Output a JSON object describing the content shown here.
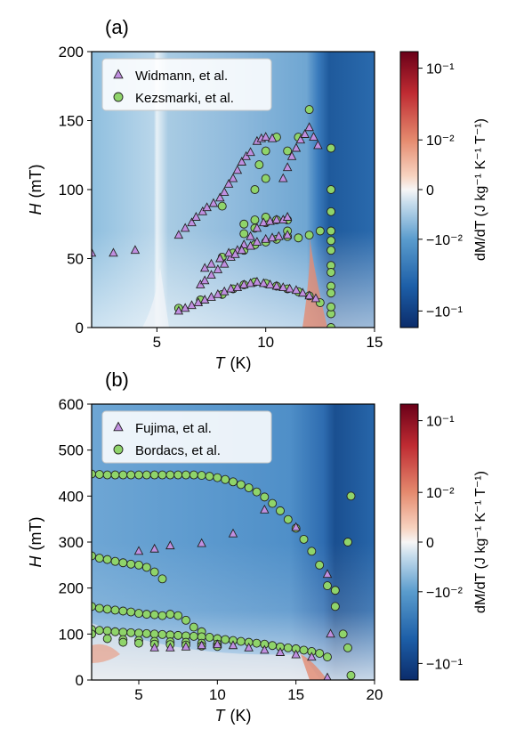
{
  "chart_data": [
    {
      "type": "heatmap",
      "panel_label": "(a)",
      "xlabel_var": "T",
      "xlabel_unit": "(K)",
      "ylabel_var": "H",
      "ylabel_unit": "(mT)",
      "xlim": [
        2,
        15
      ],
      "ylim": [
        0,
        200
      ],
      "xticks": [
        5,
        10,
        15
      ],
      "yticks": [
        0,
        50,
        100,
        150,
        200
      ],
      "colorbar": {
        "label": "dM/dT (J kg⁻¹ K⁻¹ T⁻¹)",
        "scale": "symlog",
        "ticks": [
          "10⁻¹",
          "10⁻²",
          "0",
          "−10⁻²",
          "−10⁻¹"
        ]
      },
      "legend_position": "top-left",
      "series": [
        {
          "name": "Widmann, et al.",
          "marker": "triangle",
          "color": "#c08fe0",
          "points": [
            [
              2,
              54
            ],
            [
              3,
              54
            ],
            [
              4,
              56
            ],
            [
              6,
              67
            ],
            [
              6.3,
              72
            ],
            [
              6.6,
              76
            ],
            [
              6.8,
              80
            ],
            [
              7.1,
              84
            ],
            [
              7.3,
              87
            ],
            [
              7.6,
              90
            ],
            [
              7.9,
              94
            ],
            [
              8.1,
              98
            ],
            [
              8.3,
              104
            ],
            [
              8.5,
              108
            ],
            [
              8.7,
              114
            ],
            [
              8.9,
              120
            ],
            [
              9.1,
              124
            ],
            [
              9.3,
              127
            ],
            [
              9.6,
              135
            ],
            [
              9.8,
              137
            ],
            [
              10,
              138
            ],
            [
              10.3,
              137
            ],
            [
              10.8,
              108
            ],
            [
              11,
              116
            ],
            [
              11.2,
              124
            ],
            [
              11.4,
              130
            ],
            [
              11.6,
              136
            ],
            [
              11.8,
              140
            ],
            [
              12,
              145
            ],
            [
              12.2,
              138
            ],
            [
              12.4,
              132
            ],
            [
              7,
              31
            ],
            [
              7.2,
              34
            ],
            [
              7.5,
              38
            ],
            [
              7.8,
              42
            ],
            [
              8.1,
              46
            ],
            [
              8.4,
              51
            ],
            [
              8.7,
              56
            ],
            [
              9,
              60
            ],
            [
              9.3,
              66
            ],
            [
              9.6,
              72
            ],
            [
              9.9,
              76
            ],
            [
              10.2,
              77
            ],
            [
              10.5,
              78
            ],
            [
              10.8,
              78
            ],
            [
              11,
              80
            ],
            [
              7.2,
              43
            ],
            [
              7.5,
              46
            ],
            [
              7.9,
              50
            ],
            [
              8.3,
              54
            ],
            [
              8.6,
              53
            ],
            [
              8.9,
              56
            ],
            [
              9.3,
              59
            ],
            [
              9.6,
              62
            ],
            [
              10,
              64
            ],
            [
              10.3,
              65
            ],
            [
              10.6,
              66
            ],
            [
              11,
              67
            ],
            [
              6,
              12
            ],
            [
              6.3,
              14
            ],
            [
              6.6,
              16
            ],
            [
              6.9,
              18
            ],
            [
              7.2,
              20
            ],
            [
              7.5,
              22
            ],
            [
              7.8,
              24
            ],
            [
              8.1,
              26
            ],
            [
              8.4,
              28
            ],
            [
              8.7,
              29
            ],
            [
              9,
              31
            ],
            [
              9.3,
              32
            ],
            [
              9.6,
              33
            ],
            [
              9.9,
              32
            ],
            [
              10.2,
              31
            ],
            [
              10.5,
              30
            ],
            [
              10.8,
              29
            ],
            [
              11.1,
              28
            ],
            [
              11.4,
              27
            ],
            [
              11.7,
              25
            ],
            [
              12,
              23
            ],
            [
              12.3,
              21
            ]
          ]
        },
        {
          "name": "Kezsmarki, et al.",
          "marker": "circle",
          "color": "#8fd46a",
          "points": [
            [
              6,
              14
            ],
            [
              7,
              20
            ],
            [
              8,
              24
            ],
            [
              8.5,
              28
            ],
            [
              9,
              31
            ],
            [
              9.5,
              33
            ],
            [
              10,
              32
            ],
            [
              10.5,
              30
            ],
            [
              11,
              28
            ],
            [
              11.5,
              26
            ],
            [
              12,
              23
            ],
            [
              12.5,
              18
            ],
            [
              13,
              10
            ],
            [
              13,
              0
            ],
            [
              8,
              51
            ],
            [
              8.5,
              54
            ],
            [
              9,
              56
            ],
            [
              9.5,
              60
            ],
            [
              10,
              62
            ],
            [
              10.5,
              64
            ],
            [
              11,
              66
            ],
            [
              11.5,
              65
            ],
            [
              12,
              67
            ],
            [
              12.5,
              70
            ],
            [
              13,
              63
            ],
            [
              13,
              45
            ],
            [
              13,
              30
            ],
            [
              9,
              68
            ],
            [
              9.5,
              72
            ],
            [
              10,
              76
            ],
            [
              10.5,
              78
            ],
            [
              11,
              78
            ],
            [
              9,
              75
            ],
            [
              9.5,
              78
            ],
            [
              10,
              80
            ],
            [
              11,
              70
            ],
            [
              8,
              88
            ],
            [
              9.5,
              100
            ],
            [
              10,
              108
            ],
            [
              9.7,
              118
            ],
            [
              10,
              128
            ],
            [
              10.5,
              138
            ],
            [
              11,
              128
            ],
            [
              11.5,
              138
            ],
            [
              12,
              158
            ],
            [
              13,
              130
            ],
            [
              13,
              100
            ],
            [
              13,
              84
            ],
            [
              13,
              70
            ],
            [
              13,
              56
            ],
            [
              13,
              40
            ],
            [
              13,
              25
            ],
            [
              13,
              15
            ]
          ]
        }
      ]
    },
    {
      "type": "heatmap",
      "panel_label": "(b)",
      "xlabel_var": "T",
      "xlabel_unit": "(K)",
      "ylabel_var": "H",
      "ylabel_unit": "(mT)",
      "xlim": [
        2,
        20
      ],
      "ylim": [
        0,
        600
      ],
      "xticks": [
        5,
        10,
        15,
        20
      ],
      "yticks": [
        0,
        100,
        200,
        300,
        400,
        500,
        600
      ],
      "colorbar": {
        "label": "dM/dT (J kg⁻¹ K⁻¹ T⁻¹)",
        "scale": "symlog",
        "ticks": [
          "10⁻¹",
          "10⁻²",
          "0",
          "−10⁻²",
          "−10⁻¹"
        ]
      },
      "legend_position": "top-left",
      "series": [
        {
          "name": "Fujima, et al.",
          "marker": "triangle",
          "color": "#c08fe0",
          "points": [
            [
              5,
              280
            ],
            [
              6,
              285
            ],
            [
              7,
              292
            ],
            [
              9,
              297
            ],
            [
              11,
              318
            ],
            [
              13,
              370
            ],
            [
              15,
              332
            ],
            [
              17,
              230
            ],
            [
              17.2,
              100
            ],
            [
              6,
              70
            ],
            [
              7,
              70
            ],
            [
              8,
              72
            ],
            [
              9,
              75
            ],
            [
              10,
              77
            ],
            [
              11,
              75
            ],
            [
              12,
              70
            ],
            [
              13,
              65
            ],
            [
              14,
              60
            ],
            [
              15,
              55
            ],
            [
              16,
              50
            ],
            [
              17,
              5
            ]
          ]
        },
        {
          "name": "Bordacs, et al.",
          "marker": "circle",
          "color": "#8fd46a",
          "points": [
            [
              2,
              448
            ],
            [
              2.5,
              447
            ],
            [
              3,
              446
            ],
            [
              3.5,
              446
            ],
            [
              4,
              446
            ],
            [
              4.5,
              446
            ],
            [
              5,
              446
            ],
            [
              5.5,
              446
            ],
            [
              6,
              446
            ],
            [
              6.5,
              446
            ],
            [
              7,
              446
            ],
            [
              7.5,
              446
            ],
            [
              8,
              446
            ],
            [
              8.5,
              446
            ],
            [
              9,
              445
            ],
            [
              9.5,
              443
            ],
            [
              10,
              440
            ],
            [
              10.5,
              436
            ],
            [
              11,
              431
            ],
            [
              11.5,
              425
            ],
            [
              12,
              418
            ],
            [
              12.5,
              409
            ],
            [
              13,
              398
            ],
            [
              13.5,
              384
            ],
            [
              14,
              368
            ],
            [
              14.5,
              349
            ],
            [
              15,
              330
            ],
            [
              15.5,
              306
            ],
            [
              16,
              280
            ],
            [
              16.5,
              250
            ],
            [
              17,
              205
            ],
            [
              17.5,
              160
            ],
            [
              18,
              100
            ],
            [
              18.5,
              10
            ],
            [
              17.5,
              195
            ],
            [
              18.3,
              300
            ],
            [
              18.5,
              400
            ],
            [
              18.3,
              70
            ],
            [
              2,
              270
            ],
            [
              2.5,
              265
            ],
            [
              3,
              262
            ],
            [
              3.5,
              258
            ],
            [
              4,
              255
            ],
            [
              4.5,
              252
            ],
            [
              5,
              250
            ],
            [
              5.5,
              245
            ],
            [
              6,
              235
            ],
            [
              6.5,
              220
            ],
            [
              2,
              160
            ],
            [
              2.5,
              156
            ],
            [
              3,
              154
            ],
            [
              3.5,
              152
            ],
            [
              4,
              150
            ],
            [
              4.5,
              148
            ],
            [
              5,
              145
            ],
            [
              5.5,
              143
            ],
            [
              6,
              142
            ],
            [
              6.5,
              140
            ],
            [
              7,
              143
            ],
            [
              7.5,
              140
            ],
            [
              8,
              130
            ],
            [
              8.5,
              115
            ],
            [
              9,
              105
            ],
            [
              2,
              110
            ],
            [
              2.5,
              108
            ],
            [
              3,
              107
            ],
            [
              3.5,
              105
            ],
            [
              4,
              104
            ],
            [
              4.5,
              103
            ],
            [
              5,
              102
            ],
            [
              5.5,
              101
            ],
            [
              6,
              100
            ],
            [
              6.5,
              99
            ],
            [
              7,
              98
            ],
            [
              7.5,
              97
            ],
            [
              8,
              96
            ],
            [
              8.5,
              95
            ],
            [
              9,
              94
            ],
            [
              9.5,
              93
            ],
            [
              10,
              90
            ],
            [
              10.5,
              88
            ],
            [
              11,
              86
            ],
            [
              11.5,
              84
            ],
            [
              12,
              82
            ],
            [
              12.5,
              80
            ],
            [
              13,
              78
            ],
            [
              13.5,
              75
            ],
            [
              14,
              72
            ],
            [
              14.5,
              70
            ],
            [
              15,
              68
            ],
            [
              15.5,
              65
            ],
            [
              16,
              62
            ],
            [
              16.5,
              58
            ],
            [
              17,
              50
            ],
            [
              2,
              100
            ],
            [
              3,
              90
            ],
            [
              4,
              88
            ],
            [
              5,
              86
            ],
            [
              6,
              84
            ],
            [
              7,
              83
            ],
            [
              8,
              82
            ],
            [
              9,
              80
            ],
            [
              10,
              78
            ],
            [
              4,
              82
            ],
            [
              5,
              80
            ],
            [
              6,
              78
            ],
            [
              7,
              77
            ],
            [
              8,
              76
            ],
            [
              9,
              74
            ],
            [
              10,
              73
            ]
          ]
        }
      ]
    }
  ]
}
